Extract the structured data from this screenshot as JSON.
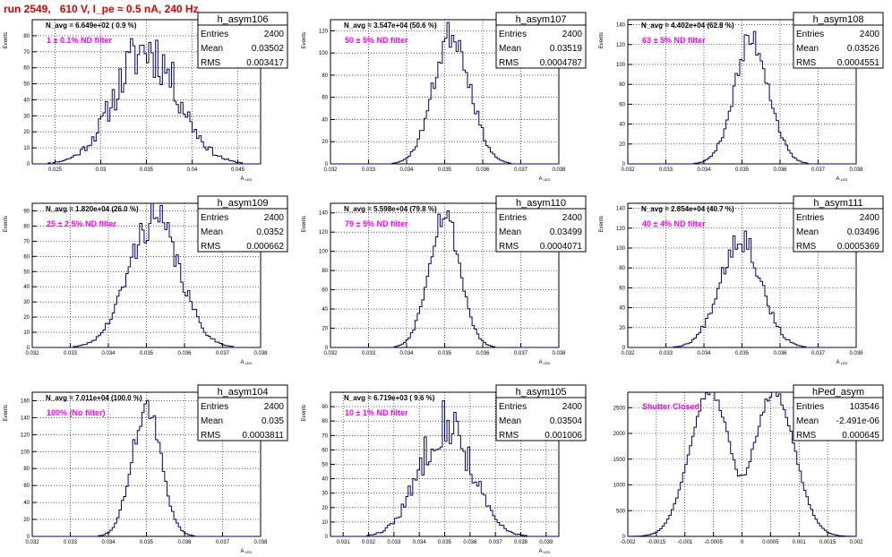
{
  "page": {
    "title": "run 2549,   610 V, I_pe ≈ 0.5 nA, 240 Hz"
  },
  "style": {
    "histogram_color": "#000080",
    "label_color": "#ff00ff",
    "title_color": "#e00000",
    "grid_color": "#000000"
  },
  "chart_data": [
    {
      "type": "histogram",
      "name": "h_asym106",
      "entries": "2400",
      "mean": "0.03502",
      "rms": "0.003417",
      "navg": "N_avg = 6.649e+02 ( 0.9 %)",
      "label": "1 ± 0.1% ND filter",
      "xlabel": "A",
      "xlabel_sub": "LED",
      "ylabel": "Events",
      "xlim": [
        0.0225,
        0.0475
      ],
      "ylim": [
        0,
        90
      ],
      "xticks": [
        0.025,
        0.03,
        0.035,
        0.04,
        0.045
      ],
      "xtick_labels": [
        "0.025",
        "0.03",
        "0.035",
        "0.04",
        "0.045"
      ],
      "yticks": [
        0,
        10,
        20,
        30,
        40,
        50,
        60,
        70,
        80
      ],
      "center": 0.03502,
      "sigma": 0.003417,
      "peak": 72,
      "jitter": 0.25,
      "seed": 11
    },
    {
      "type": "histogram",
      "name": "h_asym107",
      "entries": "2400",
      "mean": "0.03519",
      "rms": "0.0004787",
      "navg": "N_avg = 3.547e+04 (50.6 %)",
      "label": "50 ± 5% ND filter",
      "xlabel": "A",
      "xlabel_sub": "LED",
      "ylabel": "Events",
      "xlim": [
        0.032,
        0.038
      ],
      "ylim": [
        0,
        130
      ],
      "xticks": [
        0.032,
        0.033,
        0.034,
        0.035,
        0.036,
        0.037,
        0.038
      ],
      "xtick_labels": [
        "0.032",
        "0.033",
        "0.034",
        "0.035",
        "0.036",
        "0.037",
        "0.038"
      ],
      "yticks": [
        0,
        20,
        40,
        60,
        80,
        100,
        120
      ],
      "center": 0.03519,
      "sigma": 0.0004787,
      "peak": 118,
      "jitter": 0.12,
      "seed": 23
    },
    {
      "type": "histogram",
      "name": "h_asym108",
      "entries": "2400",
      "mean": "0.03526",
      "rms": "0.0004551",
      "navg": "N_avg = 4.402e+04 (62.8 %)",
      "label": "63 ± 5% ND filter",
      "xlabel": "A",
      "xlabel_sub": "LED",
      "ylabel": "Events",
      "xlim": [
        0.032,
        0.038
      ],
      "ylim": [
        0,
        145
      ],
      "xticks": [
        0.032,
        0.033,
        0.034,
        0.035,
        0.036,
        0.037,
        0.038
      ],
      "xtick_labels": [
        "0.032",
        "0.033",
        "0.034",
        "0.035",
        "0.036",
        "0.037",
        "0.038"
      ],
      "yticks": [
        0,
        20,
        40,
        60,
        80,
        100,
        120,
        140
      ],
      "center": 0.03526,
      "sigma": 0.0004551,
      "peak": 125,
      "jitter": 0.12,
      "seed": 37
    },
    {
      "type": "histogram",
      "name": "h_asym109",
      "entries": "2400",
      "mean": "0.0352",
      "rms": "0.000662",
      "navg": "N_avg = 1.820e+04 (26.0 %)",
      "label": "25 ± 2.5% ND filter",
      "xlabel": "A",
      "xlabel_sub": "LED",
      "ylabel": "Events",
      "xlim": [
        0.032,
        0.038
      ],
      "ylim": [
        0,
        95
      ],
      "xticks": [
        0.032,
        0.033,
        0.034,
        0.035,
        0.036,
        0.037,
        0.038
      ],
      "xtick_labels": [
        "0.032",
        "0.033",
        "0.034",
        "0.035",
        "0.036",
        "0.037",
        "0.038"
      ],
      "yticks": [
        0,
        10,
        20,
        30,
        40,
        50,
        60,
        70,
        80,
        90
      ],
      "center": 0.0352,
      "sigma": 0.000662,
      "peak": 85,
      "jitter": 0.15,
      "seed": 41
    },
    {
      "type": "histogram",
      "name": "h_asym110",
      "entries": "2400",
      "mean": "0.03499",
      "rms": "0.0004071",
      "navg": "N_avg = 5.598e+04 (79.8 %)",
      "label": "79 ± 5% ND filter",
      "xlabel": "A",
      "xlabel_sub": "LED",
      "ylabel": "Events",
      "xlim": [
        0.032,
        0.038
      ],
      "ylim": [
        0,
        150
      ],
      "xticks": [
        0.032,
        0.033,
        0.034,
        0.035,
        0.036,
        0.037,
        0.038
      ],
      "xtick_labels": [
        "0.032",
        "0.033",
        "0.034",
        "0.035",
        "0.036",
        "0.037",
        "0.038"
      ],
      "yticks": [
        0,
        20,
        40,
        60,
        80,
        100,
        120,
        140
      ],
      "center": 0.03499,
      "sigma": 0.0004071,
      "peak": 140,
      "jitter": 0.1,
      "seed": 53
    },
    {
      "type": "histogram",
      "name": "h_asym111",
      "entries": "2400",
      "mean": "0.03496",
      "rms": "0.0005369",
      "navg": "N_avg = 2.854e+04 (40.7 %)",
      "label": "40 ± 4% ND filter",
      "xlabel": "A",
      "xlabel_sub": "LED",
      "ylabel": "Events",
      "xlim": [
        0.032,
        0.038
      ],
      "ylim": [
        0,
        145
      ],
      "xticks": [
        0.032,
        0.033,
        0.034,
        0.035,
        0.036,
        0.037,
        0.038
      ],
      "xtick_labels": [
        "0.032",
        "0.033",
        "0.034",
        "0.035",
        "0.036",
        "0.037",
        "0.038"
      ],
      "yticks": [
        0,
        20,
        40,
        60,
        80,
        100,
        120,
        140
      ],
      "center": 0.03496,
      "sigma": 0.0005369,
      "peak": 112,
      "jitter": 0.14,
      "seed": 67
    },
    {
      "type": "histogram",
      "name": "h_asym104",
      "entries": "2400",
      "mean": "0.035",
      "rms": "0.0003811",
      "navg": "N_avg = 7.011e+04 (100.0 %)",
      "label": "100% (No filter)",
      "xlabel": "A",
      "xlabel_sub": "LED",
      "ylabel": "Events",
      "xlim": [
        0.032,
        0.038
      ],
      "ylim": [
        0,
        170
      ],
      "xticks": [
        0.032,
        0.033,
        0.034,
        0.035,
        0.036,
        0.037,
        0.038
      ],
      "xtick_labels": [
        "0.032",
        "0.033",
        "0.034",
        "0.035",
        "0.036",
        "0.037",
        "0.038"
      ],
      "yticks": [
        0,
        20,
        40,
        60,
        80,
        100,
        120,
        140,
        160
      ],
      "center": 0.035,
      "sigma": 0.0003811,
      "peak": 152,
      "jitter": 0.1,
      "seed": 71
    },
    {
      "type": "histogram",
      "name": "h_asym105",
      "entries": "2400",
      "mean": "0.03504",
      "rms": "0.001006",
      "navg": "N_avg = 6.719e+03 ( 9.6 %)",
      "label": "10 ± 1% ND filter",
      "xlabel": "A",
      "xlabel_sub": "LED",
      "ylabel": "Events",
      "xlim": [
        0.0305,
        0.0395
      ],
      "ylim": [
        0,
        100
      ],
      "xticks": [
        0.031,
        0.032,
        0.033,
        0.034,
        0.035,
        0.036,
        0.037,
        0.038,
        0.039
      ],
      "xtick_labels": [
        "0.031",
        "0.032",
        "0.033",
        "0.034",
        "0.035",
        "0.036",
        "0.037",
        "0.038",
        "0.039"
      ],
      "yticks": [
        0,
        10,
        20,
        30,
        40,
        50,
        60,
        70,
        80,
        90
      ],
      "center": 0.03504,
      "sigma": 0.001006,
      "peak": 80,
      "jitter": 0.22,
      "seed": 83
    },
    {
      "type": "histogram",
      "name": "hPed_asym",
      "entries": "103546",
      "mean": "-2.491e-06",
      "rms": "0.000645",
      "navg": "",
      "label": "Shutter Closed",
      "xlabel": "",
      "xlabel_sub": "",
      "ylabel": "",
      "xlim": [
        -0.002,
        0.002
      ],
      "ylim": [
        0,
        2800
      ],
      "xticks": [
        -0.002,
        -0.0015,
        -0.001,
        -0.0005,
        0,
        0.0005,
        0.001,
        0.0015,
        0.002
      ],
      "xtick_labels": [
        "-0.002",
        "-0.0015",
        "-0.001",
        "-0.0005",
        "0",
        "0.0005",
        "0.001",
        "0.0015",
        "0.002"
      ],
      "yticks": [
        0,
        500,
        1000,
        1500,
        2000,
        2500
      ],
      "bimodal": true,
      "modes": [
        -0.00058,
        0.00058
      ],
      "sigma": 0.00035,
      "peak": 2700,
      "dip": 1050,
      "jitter": 0.03,
      "seed": 97
    }
  ]
}
